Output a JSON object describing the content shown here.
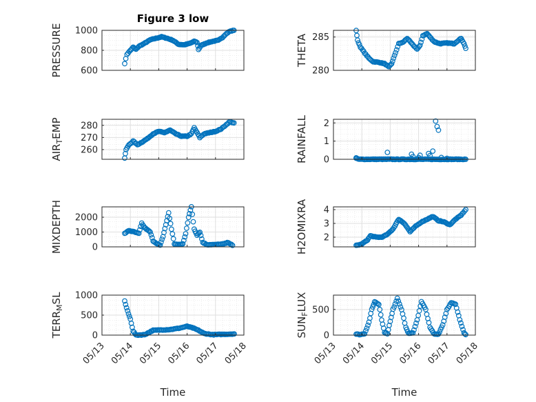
{
  "figure_title": "Figure 3 low",
  "x_axis_label": "Time",
  "colors": {
    "marker": "#0072BD",
    "axes": "#262626",
    "grid": "#dfdfdf"
  },
  "chart_data": [
    {
      "type": "scatter",
      "ylabel_main": "PRESSURE",
      "ylabel_sub": "",
      "ylabel_rest": "",
      "ylim": [
        600,
        1000
      ],
      "yticks": [
        "600",
        "800",
        "1000"
      ],
      "ytick_values": [
        600,
        800,
        1000
      ],
      "xlim": [
        "05/13",
        "05/18"
      ],
      "xticks": [
        "05/13",
        "05/14",
        "05/15",
        "05/16",
        "05/17",
        "05/18"
      ],
      "grid": true,
      "title": "Figure 3 low",
      "anchors": [
        [
          0.0,
          670
        ],
        [
          0.08,
          760
        ],
        [
          0.2,
          800
        ],
        [
          0.3,
          830
        ],
        [
          0.4,
          810
        ],
        [
          0.5,
          840
        ],
        [
          0.7,
          870
        ],
        [
          0.9,
          905
        ],
        [
          1.1,
          920
        ],
        [
          1.3,
          935
        ],
        [
          1.5,
          920
        ],
        [
          1.7,
          900
        ],
        [
          1.9,
          860
        ],
        [
          2.1,
          855
        ],
        [
          2.3,
          870
        ],
        [
          2.45,
          890
        ],
        [
          2.55,
          880
        ],
        [
          2.6,
          810
        ],
        [
          2.7,
          850
        ],
        [
          2.9,
          875
        ],
        [
          3.1,
          890
        ],
        [
          3.3,
          900
        ],
        [
          3.45,
          930
        ],
        [
          3.55,
          960
        ],
        [
          3.7,
          990
        ],
        [
          3.85,
          1000
        ]
      ]
    },
    {
      "type": "scatter",
      "ylabel_main": "THETA",
      "ylabel_sub": "",
      "ylabel_rest": "",
      "ylim": [
        280,
        286
      ],
      "yticks": [
        "280",
        "285"
      ],
      "ytick_values": [
        280,
        285
      ],
      "xlim": [
        "05/13",
        "05/18"
      ],
      "xticks": [
        "05/13",
        "05/14",
        "05/15",
        "05/16",
        "05/17",
        "05/18"
      ],
      "grid": true,
      "title": "",
      "anchors": [
        [
          0.0,
          286
        ],
        [
          0.05,
          284.5
        ],
        [
          0.15,
          283.5
        ],
        [
          0.3,
          282.6
        ],
        [
          0.45,
          281.8
        ],
        [
          0.6,
          281.3
        ],
        [
          0.8,
          281.2
        ],
        [
          1.0,
          281.0
        ],
        [
          1.15,
          280.5
        ],
        [
          1.25,
          281.0
        ],
        [
          1.35,
          282.2
        ],
        [
          1.5,
          284.0
        ],
        [
          1.65,
          284.2
        ],
        [
          1.8,
          284.8
        ],
        [
          2.0,
          283.8
        ],
        [
          2.15,
          283.2
        ],
        [
          2.25,
          283.7
        ],
        [
          2.35,
          285.2
        ],
        [
          2.5,
          285.5
        ],
        [
          2.6,
          285.0
        ],
        [
          2.75,
          284.3
        ],
        [
          2.95,
          284.0
        ],
        [
          3.2,
          284.1
        ],
        [
          3.45,
          284.0
        ],
        [
          3.6,
          284.5
        ],
        [
          3.7,
          284.8
        ],
        [
          3.8,
          284.0
        ],
        [
          3.86,
          283.3
        ]
      ]
    },
    {
      "type": "scatter",
      "ylabel_main": "AIR",
      "ylabel_sub": "T",
      "ylabel_rest": "EMP",
      "ylim": [
        252,
        285
      ],
      "yticks": [
        "260",
        "270",
        "280"
      ],
      "ytick_values": [
        260,
        270,
        280
      ],
      "xlim": [
        "05/13",
        "05/18"
      ],
      "xticks": [
        "05/13",
        "05/14",
        "05/15",
        "05/16",
        "05/17",
        "05/18"
      ],
      "grid": true,
      "title": "",
      "anchors": [
        [
          0.0,
          253
        ],
        [
          0.05,
          260
        ],
        [
          0.15,
          264
        ],
        [
          0.3,
          267
        ],
        [
          0.45,
          264
        ],
        [
          0.6,
          266
        ],
        [
          0.8,
          269
        ],
        [
          1.0,
          273
        ],
        [
          1.2,
          275
        ],
        [
          1.4,
          274
        ],
        [
          1.6,
          276
        ],
        [
          1.8,
          273
        ],
        [
          2.0,
          271
        ],
        [
          2.2,
          271
        ],
        [
          2.35,
          273
        ],
        [
          2.45,
          278
        ],
        [
          2.55,
          274
        ],
        [
          2.65,
          270
        ],
        [
          2.8,
          273
        ],
        [
          3.0,
          274
        ],
        [
          3.2,
          275
        ],
        [
          3.4,
          277
        ],
        [
          3.55,
          280
        ],
        [
          3.7,
          283
        ],
        [
          3.85,
          282
        ]
      ]
    },
    {
      "type": "scatter",
      "ylabel_main": "RAINFALL",
      "ylabel_sub": "",
      "ylabel_rest": "",
      "ylim": [
        0,
        2.2
      ],
      "yticks": [
        "0",
        "1",
        "2"
      ],
      "ytick_values": [
        0,
        1,
        2
      ],
      "xlim": [
        "05/13",
        "05/18"
      ],
      "xticks": [
        "05/13",
        "05/14",
        "05/15",
        "05/16",
        "05/17",
        "05/18"
      ],
      "grid": true,
      "title": "",
      "anchors": [
        [
          0.0,
          0.05
        ],
        [
          0.1,
          0.0
        ],
        [
          3.86,
          0.0
        ]
      ],
      "extra_points": [
        [
          0.0,
          0.08
        ],
        [
          1.1,
          0.38
        ],
        [
          1.95,
          0.28
        ],
        [
          2.0,
          0.15
        ],
        [
          2.2,
          0.1
        ],
        [
          2.25,
          0.22
        ],
        [
          2.55,
          0.32
        ],
        [
          2.6,
          0.2
        ],
        [
          2.7,
          0.45
        ],
        [
          2.8,
          2.1
        ],
        [
          2.85,
          1.8
        ],
        [
          2.9,
          1.6
        ],
        [
          3.0,
          0.1
        ],
        [
          3.2,
          0.05
        ]
      ]
    },
    {
      "type": "scatter",
      "ylabel_main": "MIXDEPTH",
      "ylabel_sub": "",
      "ylabel_rest": "",
      "ylim": [
        0,
        2700
      ],
      "yticks": [
        "0",
        "1000",
        "2000"
      ],
      "ytick_values": [
        0,
        1000,
        2000
      ],
      "xlim": [
        "05/13",
        "05/18"
      ],
      "xticks": [
        "05/13",
        "05/14",
        "05/15",
        "05/16",
        "05/17",
        "05/18"
      ],
      "grid": true,
      "title": "",
      "anchors": [
        [
          0.0,
          900
        ],
        [
          0.15,
          1100
        ],
        [
          0.35,
          1000
        ],
        [
          0.5,
          900
        ],
        [
          0.6,
          1600
        ],
        [
          0.7,
          1300
        ],
        [
          0.9,
          1000
        ],
        [
          1.0,
          400
        ],
        [
          1.15,
          200
        ],
        [
          1.25,
          100
        ],
        [
          1.35,
          700
        ],
        [
          1.45,
          1500
        ],
        [
          1.55,
          2300
        ],
        [
          1.65,
          1200
        ],
        [
          1.75,
          200
        ],
        [
          1.9,
          150
        ],
        [
          2.05,
          200
        ],
        [
          2.15,
          900
        ],
        [
          2.25,
          2000
        ],
        [
          2.35,
          2700
        ],
        [
          2.45,
          1200
        ],
        [
          2.55,
          800
        ],
        [
          2.65,
          1000
        ],
        [
          2.75,
          300
        ],
        [
          2.9,
          150
        ],
        [
          3.2,
          150
        ],
        [
          3.5,
          200
        ],
        [
          3.65,
          300
        ],
        [
          3.8,
          100
        ]
      ]
    },
    {
      "type": "scatter",
      "ylabel_main": "H2OMIXRA",
      "ylabel_sub": "",
      "ylabel_rest": "",
      "ylim": [
        1.3,
        4.2
      ],
      "yticks": [
        "2",
        "3",
        "4"
      ],
      "ytick_values": [
        2,
        3,
        4
      ],
      "xlim": [
        "05/13",
        "05/18"
      ],
      "xticks": [
        "05/13",
        "05/14",
        "05/15",
        "05/16",
        "05/17",
        "05/18"
      ],
      "grid": true,
      "title": "",
      "anchors": [
        [
          0.0,
          1.4
        ],
        [
          0.2,
          1.5
        ],
        [
          0.4,
          1.8
        ],
        [
          0.5,
          2.1
        ],
        [
          0.7,
          2.0
        ],
        [
          0.9,
          2.0
        ],
        [
          1.1,
          2.2
        ],
        [
          1.3,
          2.6
        ],
        [
          1.5,
          3.3
        ],
        [
          1.7,
          3.0
        ],
        [
          1.9,
          2.4
        ],
        [
          2.1,
          2.8
        ],
        [
          2.3,
          3.1
        ],
        [
          2.5,
          3.3
        ],
        [
          2.7,
          3.5
        ],
        [
          2.9,
          3.2
        ],
        [
          3.1,
          3.1
        ],
        [
          3.3,
          2.9
        ],
        [
          3.5,
          3.3
        ],
        [
          3.7,
          3.6
        ],
        [
          3.86,
          4.0
        ]
      ]
    },
    {
      "type": "scatter",
      "ylabel_main": "TERR",
      "ylabel_sub": "M",
      "ylabel_rest": "SL",
      "ylim": [
        0,
        1000
      ],
      "yticks": [
        "0",
        "500",
        "1000"
      ],
      "ytick_values": [
        0,
        500,
        1000
      ],
      "xlim": [
        "05/13",
        "05/18"
      ],
      "xticks": [
        "05/13",
        "05/14",
        "05/15",
        "05/16",
        "05/17",
        "05/18"
      ],
      "grid": true,
      "title": "",
      "anchors": [
        [
          0.0,
          850
        ],
        [
          0.1,
          600
        ],
        [
          0.2,
          400
        ],
        [
          0.3,
          100
        ],
        [
          0.4,
          0
        ],
        [
          0.7,
          10
        ],
        [
          1.0,
          120
        ],
        [
          1.3,
          130
        ],
        [
          1.6,
          140
        ],
        [
          1.9,
          170
        ],
        [
          2.2,
          220
        ],
        [
          2.4,
          180
        ],
        [
          2.6,
          120
        ],
        [
          2.8,
          40
        ],
        [
          3.1,
          10
        ],
        [
          3.5,
          20
        ],
        [
          3.86,
          30
        ]
      ]
    },
    {
      "type": "scatter",
      "ylabel_main": "SUN",
      "ylabel_sub": "F",
      "ylabel_rest": "LUX",
      "ylim": [
        0,
        780
      ],
      "yticks": [
        "0",
        "500"
      ],
      "ytick_values": [
        0,
        500
      ],
      "xlim": [
        "05/13",
        "05/18"
      ],
      "xticks": [
        "05/13",
        "05/14",
        "05/15",
        "05/16",
        "05/17",
        "05/18"
      ],
      "grid": true,
      "title": "",
      "anchors": [
        [
          0.0,
          20
        ],
        [
          0.15,
          10
        ],
        [
          0.3,
          30
        ],
        [
          0.45,
          250
        ],
        [
          0.55,
          500
        ],
        [
          0.65,
          650
        ],
        [
          0.8,
          600
        ],
        [
          0.9,
          300
        ],
        [
          1.0,
          50
        ],
        [
          1.1,
          30
        ],
        [
          1.3,
          500
        ],
        [
          1.45,
          720
        ],
        [
          1.6,
          500
        ],
        [
          1.75,
          150
        ],
        [
          1.85,
          30
        ],
        [
          2.0,
          40
        ],
        [
          2.15,
          300
        ],
        [
          2.3,
          650
        ],
        [
          2.45,
          500
        ],
        [
          2.6,
          150
        ],
        [
          2.75,
          20
        ],
        [
          2.9,
          20
        ],
        [
          3.05,
          200
        ],
        [
          3.2,
          500
        ],
        [
          3.35,
          630
        ],
        [
          3.5,
          600
        ],
        [
          3.65,
          300
        ],
        [
          3.8,
          50
        ],
        [
          3.86,
          10
        ]
      ]
    }
  ]
}
